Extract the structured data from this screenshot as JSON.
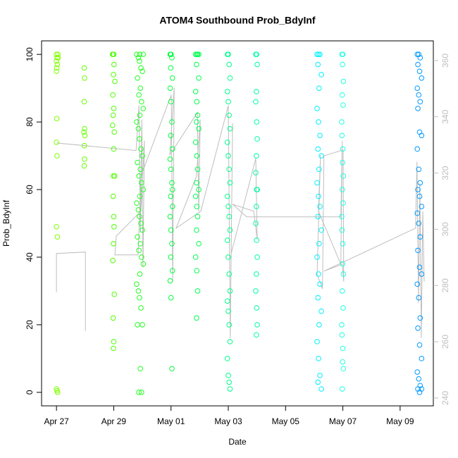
{
  "chart_data": {
    "type": "scatter",
    "title": "ATOM4 Southbound Prob_BdyInf",
    "xlabel": "Date",
    "ylabel": "Prob_BdyInf",
    "xlim": [
      -0.52,
      13.16
    ],
    "xticks": [
      {
        "value": 0,
        "label": "Apr 27"
      },
      {
        "value": 2,
        "label": "Apr 29"
      },
      {
        "value": 4,
        "label": "May 01"
      },
      {
        "value": 6,
        "label": "May 03"
      },
      {
        "value": 8,
        "label": "May 05"
      },
      {
        "value": 10,
        "label": "May 07"
      },
      {
        "value": 12,
        "label": "May 09"
      }
    ],
    "ylim": [
      -4,
      104
    ],
    "yticks": [
      0,
      20,
      40,
      60,
      80,
      100
    ],
    "y2lim": [
      237.2,
      367
    ],
    "y2ticks": [
      240,
      260,
      280,
      300,
      320,
      340,
      360
    ],
    "series": [
      {
        "type": "line",
        "axis": "y2",
        "color": "#bebebe",
        "x": [
          0,
          0,
          1.01,
          1.01,
          null,
          0,
          2.78,
          2.88,
          2.93,
          2.98,
          3.02,
          3.07,
          2.95,
          2.09,
          2.04,
          2.85,
          2.95,
          4.01,
          4.06,
          4.11,
          3.96,
          4.92,
          4.97,
          5.02,
          4.89,
          4.18,
          5.04,
          6.0,
          6.07,
          6.15,
          6.1,
          6.96,
          7.01,
          6.89,
          6.15,
          6.64,
          9.93,
          9.98,
          9.93,
          9.15,
          9.22,
          9.1,
          9.29,
          9.34,
          10.01,
          10.03,
          9.98,
          9.34,
          12.54,
          12.59,
          12.64,
          12.69,
          12.74,
          12.79,
          12.84
        ],
        "values": [
          277.6,
          291.4,
          291.9,
          263.8,
          null,
          330.7,
          328.0,
          344.0,
          298.9,
          339.0,
          286.4,
          331.5,
          306.4,
          297.6,
          290.9,
          290.9,
          318.9,
          347.8,
          281.4,
          350.3,
          326.5,
          341.5,
          306.4,
          339.0,
          318.9,
          300.4,
          306.4,
          344.0,
          261.3,
          337.7,
          291.4,
          325.2,
          296.4,
          306.4,
          308.9,
          304.4,
          304.4,
          331.5,
          287.6,
          306.4,
          326.5,
          283.9,
          278.8,
          326.1,
          328.2,
          281.4,
          287.6,
          285.1,
          300.4,
          324.0,
          273.8,
          316.4,
          261.3,
          306.4,
          281.4
        ]
      },
      {
        "type": "points",
        "color": "#80ff00",
        "x": [
          0,
          0.02,
          0,
          0.03,
          0.01,
          0,
          0.01,
          0,
          0.02,
          0,
          0.03,
          0,
          0.02,
          0.04,
          0.05,
          0.06
        ],
        "values": [
          100,
          99,
          98,
          97,
          96,
          95,
          81,
          74,
          70,
          49,
          46,
          1,
          0.5,
          0,
          100,
          99
        ]
      },
      {
        "type": "points",
        "color": "#66ff00",
        "x": [
          0.97,
          0.98,
          0.97,
          0.98,
          0.96,
          0.99,
          0.97,
          0.98,
          0.97
        ],
        "values": [
          96,
          93,
          86,
          78,
          77,
          76,
          73,
          69,
          67
        ]
      },
      {
        "type": "points",
        "color": "#4dff00",
        "x": [
          1.98,
          2.0,
          2.01,
          1.99,
          1.97,
          2.0,
          1.98,
          1.96,
          2.02,
          2.0,
          1.99,
          2.03,
          1.98,
          2.0,
          2.01,
          1.99,
          1.97,
          2.02,
          1.98,
          2.0,
          1.99,
          1.96,
          2.04
        ],
        "values": [
          100,
          100,
          97,
          94,
          88,
          84,
          82,
          79,
          77,
          72,
          64,
          64,
          58,
          52,
          49,
          44,
          39,
          29,
          22,
          15,
          13,
          100,
          92
        ]
      },
      {
        "type": "points",
        "color": "#22ff22",
        "x": [
          2.8,
          2.86,
          2.9,
          2.95,
          3.0,
          2.83,
          2.93,
          2.88,
          2.97,
          3.03,
          2.91,
          2.8,
          2.86,
          2.9,
          2.95,
          3.0,
          2.83,
          2.93,
          2.88,
          2.97,
          3.03,
          2.91,
          2.8,
          2.86,
          2.9,
          2.95,
          3.0,
          2.83,
          2.93,
          2.88,
          2.97,
          3.03,
          2.91,
          2.8,
          2.86,
          2.9,
          2.95,
          3.0,
          2.83,
          2.93,
          2.88,
          2.97,
          3.03,
          2.91
        ],
        "values": [
          100,
          99,
          98,
          96,
          95,
          93,
          90,
          88,
          86,
          84,
          82,
          80,
          78,
          75,
          72,
          70,
          68,
          66,
          64,
          62,
          60,
          58,
          56,
          54,
          52,
          50,
          48,
          46,
          44,
          42,
          40,
          38,
          35,
          32,
          30,
          28,
          25,
          20,
          20,
          7,
          0,
          0,
          100,
          100
        ]
      },
      {
        "type": "points",
        "color": "#00ff3c",
        "x": [
          3.97,
          4.0,
          4.03,
          3.99,
          4.05,
          3.97,
          4.0,
          4.03,
          3.99,
          4.05,
          3.97,
          4.0,
          4.03,
          3.99,
          4.05,
          3.97,
          4.0,
          4.03,
          3.99,
          4.05,
          3.97,
          4.0,
          4.03,
          3.99,
          4.05
        ],
        "values": [
          100,
          100,
          99,
          96,
          93,
          90,
          86,
          80,
          76,
          72,
          69,
          66,
          62,
          58,
          55,
          52,
          48,
          44,
          40,
          36,
          33,
          28,
          7,
          100,
          60
        ]
      },
      {
        "type": "points",
        "color": "#00ff50",
        "x": [
          4.86,
          4.9,
          4.93,
          4.89,
          4.97,
          4.86,
          4.9,
          4.93,
          4.89,
          4.97,
          4.86,
          4.9,
          4.93,
          4.89,
          4.97,
          4.86,
          4.9,
          4.93,
          4.89,
          4.97,
          4.86,
          4.9,
          4.93,
          4.89,
          4.97
        ],
        "values": [
          100,
          100,
          100,
          97,
          93,
          89,
          86,
          82,
          80,
          78,
          74,
          70,
          66,
          62,
          60,
          58,
          55,
          52,
          48,
          44,
          40,
          36,
          30,
          22,
          100
        ]
      },
      {
        "type": "points",
        "color": "#00ff8c",
        "x": [
          5.97,
          6.0,
          6.03,
          6.06,
          5.97,
          6.0,
          6.03,
          6.06,
          5.97,
          6.0,
          6.03,
          6.06,
          5.97,
          6.0,
          6.03,
          6.06,
          5.97,
          6.0,
          6.03,
          6.06,
          5.97,
          6.0,
          6.03,
          6.06,
          5.97,
          6.0,
          6.03,
          6.06
        ],
        "values": [
          100,
          100,
          97,
          93,
          89,
          86,
          82,
          78,
          74,
          70,
          66,
          62,
          58,
          55,
          52,
          48,
          45,
          40,
          35,
          30,
          27,
          24,
          20,
          15,
          10,
          5,
          3,
          1
        ]
      },
      {
        "type": "points",
        "color": "#00ffa0",
        "x": [
          6.96,
          6.99,
          7.01,
          6.98,
          6.96,
          6.99,
          7.01,
          6.98,
          6.96,
          6.99,
          7.01,
          6.98,
          6.96,
          6.99,
          7.01,
          6.98,
          6.96,
          6.99,
          7.01,
          6.98
        ],
        "values": [
          100,
          100,
          97,
          89,
          86,
          80,
          75,
          70,
          65,
          60,
          60,
          55,
          50,
          45,
          40,
          35,
          30,
          25,
          20,
          17
        ]
      },
      {
        "type": "points",
        "color": "#00f0ff",
        "x": [
          9.1,
          9.15,
          9.2,
          9.13,
          9.25,
          9.17,
          9.1,
          9.15,
          9.2,
          9.13,
          9.25,
          9.17,
          9.1,
          9.15,
          9.2,
          9.13,
          9.25,
          9.17,
          9.1,
          9.15,
          9.2,
          9.13,
          9.25,
          9.17,
          9.1,
          9.15,
          9.2,
          9.13,
          9.25
        ],
        "values": [
          100,
          100,
          100,
          97,
          94,
          90,
          84,
          80,
          76,
          72,
          70,
          66,
          62,
          58,
          55,
          52,
          48,
          44,
          40,
          35,
          32,
          28,
          24,
          20,
          15,
          10,
          5,
          3,
          1
        ]
      },
      {
        "type": "points",
        "color": "#22ffe0",
        "x": [
          9.97,
          10.0,
          9.99,
          10.02,
          9.98,
          10.01,
          9.96,
          9.97,
          10.0,
          9.99,
          10.02,
          9.98,
          10.01,
          9.96,
          9.97,
          10.0,
          9.99,
          10.02,
          9.98,
          10.01,
          9.96,
          9.97,
          10.0,
          9.99,
          10.02,
          9.98
        ],
        "values": [
          100,
          100,
          97,
          92,
          88,
          85,
          80,
          76,
          72,
          68,
          64,
          60,
          56,
          52,
          48,
          44,
          38,
          35,
          30,
          25,
          20,
          17,
          13,
          9,
          7,
          1
        ]
      },
      {
        "type": "points",
        "color": "#0099ff",
        "x": [
          12.6,
          12.65,
          12.7,
          12.62,
          12.68,
          12.75,
          12.6,
          12.65,
          12.7,
          12.62,
          12.68,
          12.75,
          12.6,
          12.65,
          12.7,
          12.62,
          12.68,
          12.75,
          12.6,
          12.65,
          12.7,
          12.62,
          12.68,
          12.75,
          12.6,
          12.65,
          12.7,
          12.62,
          12.68,
          12.75,
          12.6,
          12.65,
          12.7,
          12.62,
          12.68,
          12.75
        ],
        "values": [
          100,
          100,
          99,
          97,
          95,
          93,
          90,
          88,
          86,
          84,
          77,
          76,
          72,
          66,
          62,
          60,
          58,
          55,
          53,
          50,
          46,
          42,
          37,
          35,
          32,
          28,
          22,
          19,
          14,
          10,
          6,
          4,
          2,
          1,
          0,
          1
        ]
      }
    ]
  }
}
